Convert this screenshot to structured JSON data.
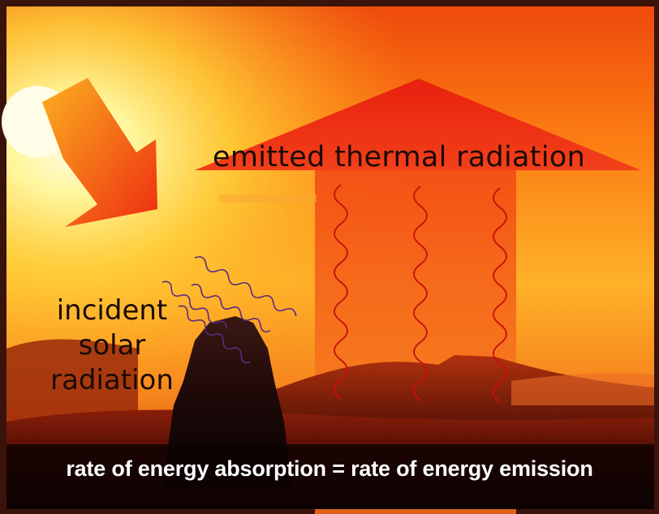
{
  "labels": {
    "emitted": "emitted thermal radiation",
    "incident_line1": "incident",
    "incident_line2": "solar",
    "incident_line3": "radiation",
    "equation": "rate of energy absorption = rate of energy emission"
  },
  "icons": {
    "sun": "sun-icon",
    "incident_arrow": "down-right-arrow-icon",
    "emitted_arrow": "up-arrow-icon"
  },
  "colors": {
    "sky_top": "#f2540e",
    "sky_mid": "#ff9a1c",
    "sky_glow": "#fff3a0",
    "arrow_red": "#ee2a12",
    "arrow_body": "#f2501a",
    "wave_red": "#c8100c",
    "wave_purple": "#6a2f86",
    "ground_dark": "#140504",
    "ground_mid": "#7a1608",
    "caption_text": "#ffffff",
    "label_text": "#1a0a06"
  }
}
